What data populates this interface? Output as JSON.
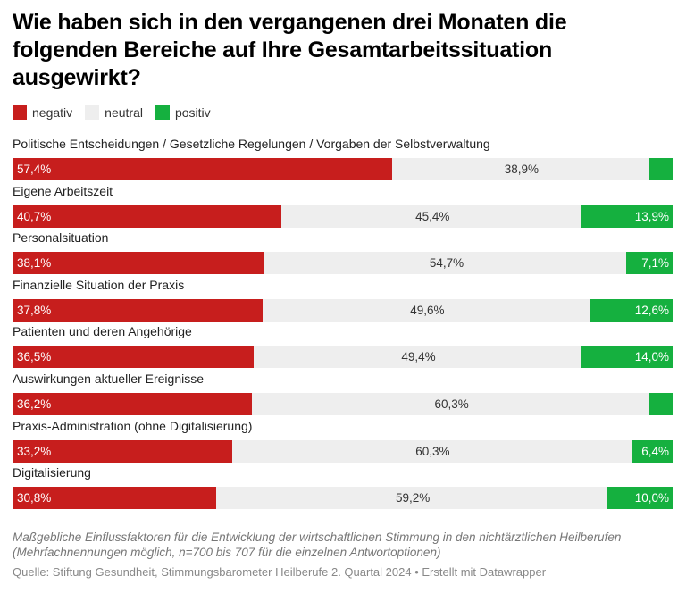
{
  "title": "Wie haben sich in den vergangenen drei Monaten die folgenden Bereiche auf Ihre Gesamtarbeitssituation ausgewirkt?",
  "legend": [
    {
      "label": "negativ",
      "color": "#c71e1d"
    },
    {
      "label": "neutral",
      "color": "#eeeeee"
    },
    {
      "label": "positiv",
      "color": "#15b03f"
    }
  ],
  "chart_data": {
    "type": "bar",
    "stacked": true,
    "orientation": "horizontal",
    "categories": [
      "Politische Entscheidungen / Gesetzliche Regelungen / Vorgaben der Selbstverwaltung",
      "Eigene Arbeitszeit",
      "Personalsituation",
      "Finanzielle Situation der Praxis",
      "Patienten und deren Angehörige",
      "Auswirkungen aktueller Ereignisse",
      "Praxis-Administration (ohne Digitalisierung)",
      "Digitalisierung"
    ],
    "series": [
      {
        "name": "negativ",
        "color": "#c71e1d",
        "values": [
          57.4,
          40.7,
          38.1,
          37.8,
          36.5,
          36.2,
          33.2,
          30.8
        ],
        "labels": [
          "57,4%",
          "40,7%",
          "38,1%",
          "37,8%",
          "36,5%",
          "36,2%",
          "33,2%",
          "30,8%"
        ]
      },
      {
        "name": "neutral",
        "color": "#eeeeee",
        "values": [
          38.9,
          45.4,
          54.7,
          49.6,
          49.4,
          60.3,
          60.3,
          59.2
        ],
        "labels": [
          "38,9%",
          "45,4%",
          "54,7%",
          "49,6%",
          "49,4%",
          "60,3%",
          "60,3%",
          "59,2%"
        ]
      },
      {
        "name": "positiv",
        "color": "#15b03f",
        "values": [
          3.7,
          13.9,
          7.1,
          12.6,
          14.0,
          3.6,
          6.4,
          10.0
        ],
        "labels": [
          "",
          "13,9%",
          "7,1%",
          "12,6%",
          "14,0%",
          "",
          "6,4%",
          "10,0%"
        ]
      }
    ]
  },
  "notes": "Maßgebliche Einflussfaktoren für die Entwicklung der wirtschaftlichen Stimmung in den nichtärztlichen Heilberufen (Mehrfachnennungen möglich, n=700 bis 707 für die einzelnen Antwortoptionen)",
  "source": "Quelle: Stiftung Gesundheit, Stimmungsbarometer Heilberufe 2. Quartal 2024 • Erstellt mit Datawrapper"
}
